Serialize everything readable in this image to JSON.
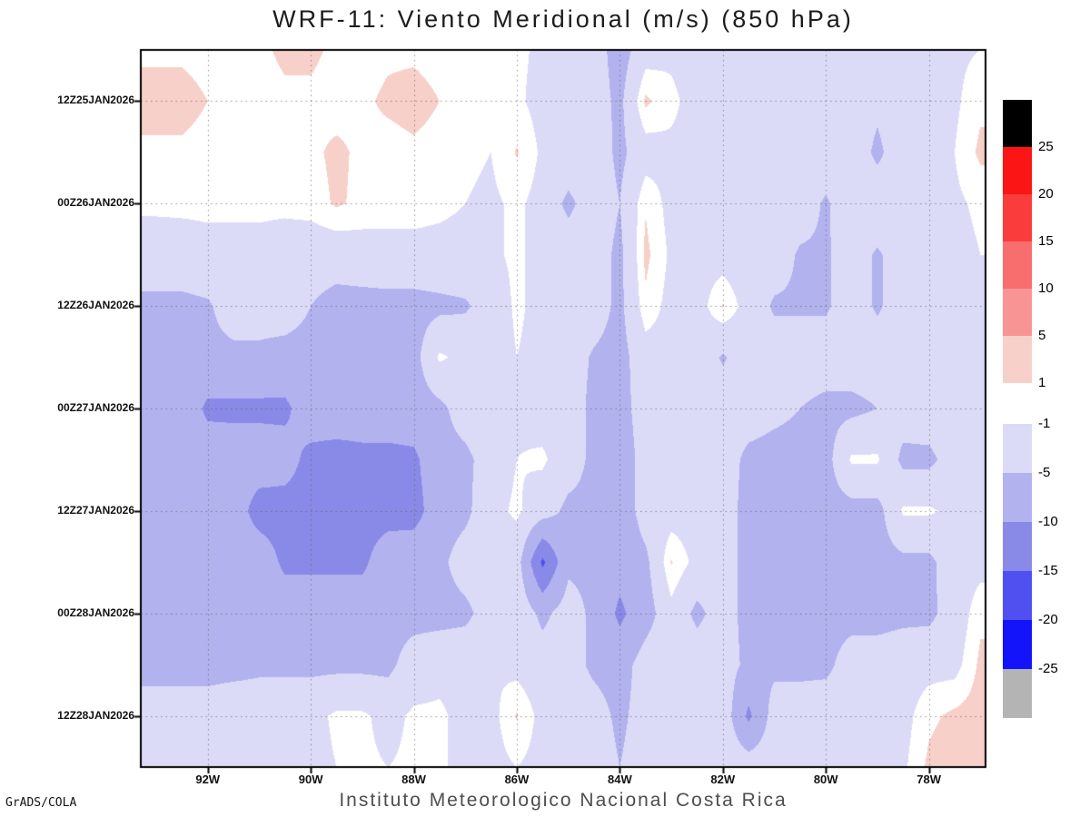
{
  "title": "WRF-11: Viento Meridional (m/s) (850 hPa)",
  "caption": "Instituto Meteorologico Nacional Costa Rica",
  "credit": "GrADS/COLA",
  "chart_data": {
    "type": "heatmap",
    "subtype": "hovmoller-filled-contour",
    "title": "WRF-11: Viento Meridional (m/s) (850 hPa)",
    "variable": "Viento Meridional",
    "units": "m/s",
    "level": "850 hPa",
    "x_axis": {
      "lon_min": -93.3,
      "lon_max": -76.9,
      "ticks": [
        {
          "label": "92W",
          "lon": -92
        },
        {
          "label": "90W",
          "lon": -90
        },
        {
          "label": "88W",
          "lon": -88
        },
        {
          "label": "86W",
          "lon": -86
        },
        {
          "label": "84W",
          "lon": -84
        },
        {
          "label": "82W",
          "lon": -82
        },
        {
          "label": "80W",
          "lon": -80
        },
        {
          "label": "78W",
          "lon": -78
        }
      ]
    },
    "y_axis": {
      "rows_total": 15,
      "ticks": [
        {
          "label": "12Z25JAN2026",
          "row": 1
        },
        {
          "label": "00Z26JAN2026",
          "row": 3
        },
        {
          "label": "12Z26JAN2026",
          "row": 5
        },
        {
          "label": "00Z27JAN2026",
          "row": 7
        },
        {
          "label": "12Z27JAN2026",
          "row": 9
        },
        {
          "label": "00Z28JAN2026",
          "row": 11
        },
        {
          "label": "12Z28JAN2026",
          "row": 13
        }
      ]
    },
    "grid_times": [
      "06Z25JAN2026",
      "12Z25JAN2026",
      "18Z25JAN2026",
      "00Z26JAN2026",
      "06Z26JAN2026",
      "12Z26JAN2026",
      "18Z26JAN2026",
      "00Z27JAN2026",
      "06Z27JAN2026",
      "12Z27JAN2026",
      "18Z27JAN2026",
      "00Z28JAN2026",
      "06Z28JAN2026",
      "12Z28JAN2026",
      "18Z28JAN2026"
    ],
    "grid_lons": [
      -93,
      -92.5,
      -92,
      -91.5,
      -91,
      -90.5,
      -90,
      -89.5,
      -89,
      -88.5,
      -88,
      -87.5,
      -87,
      -86.5,
      -86,
      -85.5,
      -85,
      -84.5,
      -84,
      -83.5,
      -83,
      -82.5,
      -82,
      -81.5,
      -81,
      -80.5,
      -80,
      -79.5,
      -79,
      -78.5,
      -78,
      -77.5,
      -77
    ],
    "values": [
      [
        0.5,
        0.5,
        0,
        0,
        0.5,
        1.5,
        1.5,
        0.5,
        0,
        0.5,
        0.5,
        0,
        -0.5,
        -0.5,
        -0.5,
        -1.5,
        -2,
        -3,
        -7,
        -2.5,
        -1.5,
        -2,
        -2,
        -2,
        -2,
        -2.5,
        -2,
        -2,
        -2.5,
        -2,
        -2,
        -1.5,
        -1
      ],
      [
        2,
        2,
        1,
        0,
        0,
        0.5,
        0.5,
        0,
        0.5,
        1.5,
        2,
        1,
        0,
        -0.5,
        -0.5,
        -2,
        -2,
        -3,
        -6,
        1.5,
        -0.5,
        -2,
        -2.5,
        -2,
        -2,
        -3,
        -2,
        -2,
        -4,
        -2,
        -2,
        -1.5,
        0.5
      ],
      [
        0.5,
        0.5,
        0,
        -0.5,
        -0.5,
        0,
        0.5,
        1.5,
        0.5,
        0,
        0.5,
        0,
        -0.5,
        -1,
        1.2,
        -1.5,
        -2,
        -2.5,
        -6,
        -2.5,
        -1.5,
        -1.5,
        -2,
        -2,
        -2.5,
        -3,
        -2.5,
        -2,
        -6,
        -2,
        -2,
        -1,
        1.5
      ],
      [
        -0.5,
        -0.4,
        -0.4,
        -0.4,
        -0.4,
        -0.4,
        0,
        1.3,
        0.5,
        0,
        0,
        -0.4,
        -1,
        -1.5,
        -0.5,
        -2,
        -6,
        -2.5,
        -5,
        0.8,
        -2,
        -2,
        -2,
        -2.5,
        -2.5,
        -3,
        -5.5,
        -2.5,
        -2,
        -2,
        -2,
        -1.5,
        -0.5
      ],
      [
        -2.5,
        -2.5,
        -2,
        -2,
        -2,
        -2.5,
        -3,
        -3,
        -2.5,
        -2,
        -2,
        -2,
        -2,
        -1.5,
        -0.5,
        -2,
        -2.5,
        -3,
        -6,
        1.6,
        -1.5,
        -2,
        -2.5,
        -3,
        -3,
        -5.5,
        -5.5,
        -3,
        -5.5,
        -3,
        -2.5,
        -2,
        -1
      ],
      [
        -6,
        -6,
        -5.5,
        -3,
        -3,
        -3,
        -5,
        -6.5,
        -6.5,
        -6.5,
        -6.5,
        -6,
        -5.5,
        -3,
        -0.5,
        -2,
        -2.5,
        -3,
        -6,
        0.5,
        -2,
        -2.5,
        1.2,
        -2.5,
        -5.5,
        -5.5,
        -5.5,
        -3,
        -5.5,
        -3,
        -2,
        -2,
        -1.5
      ],
      [
        -6.5,
        -6.5,
        -6,
        -6,
        -6,
        -6.5,
        -6.5,
        -7,
        -7,
        -7,
        -6.5,
        -0.5,
        -2,
        -3,
        -1,
        -2,
        -3,
        -5.5,
        -6.5,
        -2.5,
        -2,
        -2,
        -5.5,
        -2.5,
        -3,
        -3,
        -3,
        -3,
        -3,
        -2.5,
        -2.5,
        -2,
        -1.5
      ],
      [
        -6.5,
        -6.5,
        -11,
        -11,
        -11,
        -11,
        -7,
        -7,
        -7,
        -7,
        -7,
        -6,
        -3,
        -2,
        -1.5,
        -2.5,
        -3,
        -6,
        -7,
        -2.5,
        -2.5,
        -2.5,
        -2.5,
        -3,
        -4,
        -5,
        -6,
        -6,
        -5,
        -3,
        -2.5,
        -2,
        -1.5
      ],
      [
        -7,
        -7,
        -7,
        -7.5,
        -7.5,
        -8,
        -11.5,
        -12,
        -11.5,
        -11.5,
        -11,
        -6.5,
        -6,
        -3,
        -1,
        -0.5,
        -3,
        -6,
        -8,
        -3,
        -2.5,
        -2.5,
        -3,
        -6,
        -6.5,
        -6.5,
        -6.5,
        -0.5,
        -0.5,
        -6,
        -6,
        -3,
        -2
      ],
      [
        -7,
        -7,
        -7,
        -7.5,
        -12,
        -12,
        -12,
        -12,
        -12,
        -12,
        -12,
        -7,
        -6,
        -2,
        -0.5,
        -3,
        -6,
        -6,
        -8,
        -3,
        -2.5,
        -2.5,
        -3,
        -6.5,
        -6.5,
        -6.5,
        -6.5,
        -6.5,
        -6.5,
        -0.5,
        -0.5,
        -2,
        -2
      ],
      [
        -7,
        -7,
        -7,
        -7,
        -7,
        -11,
        -11,
        -11,
        -11,
        -7,
        -6.5,
        -6,
        -3,
        -2,
        -3,
        -16,
        -6,
        -6,
        -8,
        -6,
        1.2,
        -2,
        -3,
        -6.5,
        -6.5,
        -6.5,
        -6.5,
        -6.5,
        -6.5,
        -6,
        -6,
        -2.5,
        -2
      ],
      [
        -7,
        -7,
        -7,
        -7,
        -7,
        -7,
        -7,
        -7,
        -7,
        -6.5,
        -6.5,
        -6.5,
        -6,
        -3,
        -2,
        -6,
        -3,
        -6,
        -11,
        -7,
        -2,
        -6,
        -3,
        -6.5,
        -6.5,
        -6.5,
        -6.5,
        -6.5,
        -6.5,
        -6,
        -6,
        -3,
        0.5
      ],
      [
        -6.5,
        -6.5,
        -6.5,
        -6.5,
        -6,
        -6,
        -6,
        -6,
        -6,
        -6,
        -3,
        -2,
        -2,
        -1,
        -2,
        -3,
        -3,
        -6,
        -7,
        -3,
        -2,
        -2.5,
        -3,
        -6,
        -6,
        -6,
        -6,
        -3,
        -3,
        -2.5,
        -2,
        -2,
        1.5
      ],
      [
        -3,
        -3,
        -3,
        -2,
        -2,
        -2,
        -2,
        -0.5,
        -0.5,
        -2,
        -0.5,
        -0.5,
        -2,
        -2,
        1.2,
        -2,
        -2.5,
        -3,
        -6,
        -3,
        -2,
        -2,
        -2,
        -11,
        -3,
        -3,
        -2.5,
        -2.5,
        -2.5,
        -2,
        0.5,
        1.5,
        2
      ],
      [
        -2,
        -2,
        -2,
        -2,
        -2,
        -2,
        -2,
        -1,
        -0.5,
        -1,
        -0.5,
        -0.5,
        -2,
        -2,
        -1,
        -2,
        -2,
        -2.5,
        -5,
        -2.5,
        -2,
        -2,
        -2,
        -2.5,
        -2.5,
        -2.5,
        -2,
        -2,
        -2,
        -1.5,
        1.5,
        2.5,
        3
      ]
    ],
    "fill_levels": [
      -25,
      -20,
      -15,
      -10,
      -5,
      -1,
      1,
      5,
      10,
      15,
      20,
      25
    ],
    "colors": {
      "neutral": "#ffffff",
      "positive": [
        "#000000",
        "#fb1515",
        "#fa3c3c",
        "#f86e6e",
        "#f89494",
        "#f8d0ca"
      ],
      "negative": [
        "#dbdbf7",
        "#b2b2ef",
        "#8989e8",
        "#5050f1",
        "#1414fa",
        "#b4b4b4"
      ]
    },
    "colorbar": {
      "upper_labels": [
        "25",
        "20",
        "15",
        "10",
        "5",
        "1"
      ],
      "lower_labels": [
        "-1",
        "-5",
        "-10",
        "-15",
        "-20",
        "-25"
      ]
    },
    "grid_on": true,
    "legend_position": "right"
  }
}
